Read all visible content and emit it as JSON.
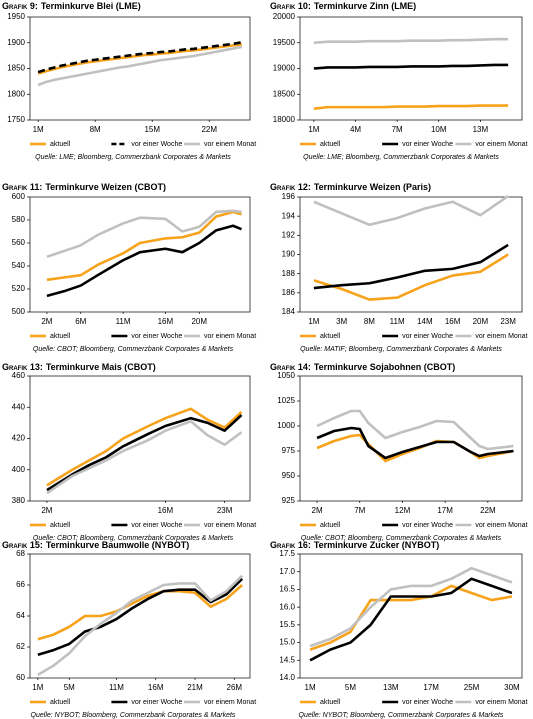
{
  "chart_data": [
    {
      "type": "line",
      "label": "Grafik 9:",
      "title": "Terminkurve Blei (LME)",
      "source": "Quelle: LME; Bloomberg, Commerzbank Corporates & Markets",
      "x": [
        1,
        2,
        3,
        4,
        5,
        6,
        7,
        8,
        9,
        10,
        11,
        12,
        13,
        14,
        15,
        16,
        17,
        18,
        19,
        20,
        21,
        22,
        23,
        24,
        25,
        26
      ],
      "xlim": [
        0,
        27
      ],
      "xticks": [
        {
          "value": 1,
          "label": "1M"
        },
        {
          "value": 8,
          "label": "8M"
        },
        {
          "value": 15,
          "label": "15M"
        },
        {
          "value": 22,
          "label": "22M"
        }
      ],
      "ylim": [
        1750,
        1950
      ],
      "yticks": [
        1750,
        1800,
        1850,
        1900,
        1950
      ],
      "series": [
        {
          "name": "aktuell",
          "color": "#f7a21b",
          "values": [
            1840,
            1845,
            1849,
            1853,
            1856,
            1859,
            1862,
            1864,
            1866,
            1868,
            1870,
            1872,
            1874,
            1876,
            1877,
            1879,
            1880,
            1882,
            1884,
            1885,
            1887,
            1889,
            1891,
            1893,
            1895,
            1897
          ]
        },
        {
          "name": "vor einer Woche",
          "color": "#000000",
          "dashed": true,
          "values": [
            1843,
            1848,
            1852,
            1856,
            1859,
            1862,
            1865,
            1867,
            1869,
            1871,
            1873,
            1875,
            1877,
            1879,
            1880,
            1882,
            1883,
            1885,
            1887,
            1888,
            1890,
            1892,
            1894,
            1896,
            1898,
            1901
          ]
        },
        {
          "name": "vor einem Monat",
          "color": "#c0c0c0",
          "values": [
            1818,
            1824,
            1828,
            1831,
            1834,
            1837,
            1840,
            1843,
            1846,
            1849,
            1852,
            1854,
            1857,
            1860,
            1863,
            1866,
            1868,
            1870,
            1872,
            1874,
            1877,
            1880,
            1883,
            1886,
            1889,
            1892
          ]
        }
      ]
    },
    {
      "type": "line",
      "label": "Grafik 10:",
      "title": "Terminkurve Zinn (LME)",
      "source": "Quelle: LME; Bloomberg, Commerzbank Corporates & Markets",
      "x": [
        1,
        2,
        3,
        4,
        5,
        6,
        7,
        8,
        9,
        10,
        11,
        12,
        13,
        14,
        15
      ],
      "xlim": [
        0,
        16
      ],
      "xticks": [
        {
          "value": 1,
          "label": "1M"
        },
        {
          "value": 4,
          "label": "4M"
        },
        {
          "value": 7,
          "label": "7M"
        },
        {
          "value": 10,
          "label": "10M"
        },
        {
          "value": 13,
          "label": "13M"
        }
      ],
      "ylim": [
        18000,
        20000
      ],
      "yticks": [
        18000,
        18500,
        19000,
        19500,
        20000
      ],
      "series": [
        {
          "name": "aktuell",
          "color": "#f7a21b",
          "values": [
            18220,
            18250,
            18250,
            18250,
            18250,
            18250,
            18260,
            18260,
            18260,
            18270,
            18270,
            18270,
            18280,
            18280,
            18280
          ]
        },
        {
          "name": "vor einer Woche",
          "color": "#000000",
          "values": [
            19000,
            19020,
            19020,
            19020,
            19030,
            19030,
            19030,
            19040,
            19040,
            19040,
            19050,
            19050,
            19060,
            19070,
            19070
          ]
        },
        {
          "name": "vor einem Monat",
          "color": "#c0c0c0",
          "values": [
            19500,
            19520,
            19520,
            19520,
            19530,
            19530,
            19530,
            19540,
            19540,
            19540,
            19550,
            19550,
            19560,
            19570,
            19570
          ]
        }
      ]
    },
    {
      "type": "line",
      "label": "Grafik 11:",
      "title": "Terminkurve Weizen (CBOT)",
      "source": "Quelle: CBOT; Bloomberg, Commerzbank Corporates & Markets",
      "x": [
        2,
        4,
        6,
        8,
        11,
        13,
        16,
        18,
        20,
        22,
        24,
        25
      ],
      "xlim": [
        0,
        26
      ],
      "xticks": [
        {
          "value": 2,
          "label": "2M"
        },
        {
          "value": 6,
          "label": "6M"
        },
        {
          "value": 11,
          "label": "11M"
        },
        {
          "value": 16,
          "label": "16M"
        },
        {
          "value": 20,
          "label": "20M"
        }
      ],
      "ylim": [
        500,
        600
      ],
      "yticks": [
        500,
        520,
        540,
        560,
        580,
        600
      ],
      "series": [
        {
          "name": "aktuell",
          "color": "#f7a21b",
          "values": [
            528,
            530,
            532,
            541,
            551,
            560,
            564,
            565,
            569,
            583,
            587,
            585
          ]
        },
        {
          "name": "vor einer Woche",
          "color": "#000000",
          "values": [
            514,
            518,
            523,
            532,
            545,
            552,
            555,
            552,
            560,
            571,
            575,
            572
          ]
        },
        {
          "name": "vor einem Monat",
          "color": "#c0c0c0",
          "values": [
            548,
            553,
            558,
            567,
            577,
            582,
            581,
            570,
            574,
            587,
            588,
            587
          ]
        }
      ]
    },
    {
      "type": "line",
      "label": "Grafik 12:",
      "title": "Terminkurve Weizen (Paris)",
      "source": "Quelle: MATIF; Bloomberg, Commerzbank Corporates & Markets",
      "categories": [
        "1M",
        "3M",
        "8M",
        "11M",
        "14M",
        "16M",
        "20M",
        "23M"
      ],
      "ylim": [
        184,
        196
      ],
      "yticks": [
        184,
        186,
        188,
        190,
        192,
        194,
        196
      ],
      "series": [
        {
          "name": "aktuell",
          "color": "#f7a21b",
          "values": [
            187.3,
            186.4,
            185.3,
            185.5,
            186.8,
            187.8,
            188.2,
            190.0
          ]
        },
        {
          "name": "vor einer Woche",
          "color": "#000000",
          "values": [
            186.5,
            186.8,
            187.0,
            187.6,
            188.3,
            188.5,
            189.2,
            191.0
          ]
        },
        {
          "name": "vor einem Monat",
          "color": "#c0c0c0",
          "values": [
            195.5,
            194.3,
            193.1,
            193.8,
            194.8,
            195.5,
            194.1,
            196.1
          ]
        }
      ]
    },
    {
      "type": "line",
      "label": "Grafik 13:",
      "title": "Terminkurve Mais (CBOT)",
      "source": "Quelle: CBOT; Bloomberg, Commerzbank Corporates & Markets",
      "x": [
        2,
        5,
        7,
        9,
        11,
        14,
        16,
        19,
        21,
        23,
        25
      ],
      "xlim": [
        0,
        26
      ],
      "xticks": [
        {
          "value": 2,
          "label": "2M"
        },
        {
          "value": 16,
          "label": "16M"
        },
        {
          "value": 23,
          "label": "23M"
        }
      ],
      "ylim": [
        380,
        460
      ],
      "yticks": [
        380,
        400,
        420,
        440,
        460
      ],
      "series": [
        {
          "name": "aktuell",
          "color": "#f7a21b",
          "values": [
            390,
            400,
            406,
            412,
            420,
            428,
            433,
            439,
            432,
            427,
            437
          ]
        },
        {
          "name": "vor einer Woche",
          "color": "#000000",
          "values": [
            387,
            397,
            403,
            408,
            415,
            423,
            428,
            433,
            430,
            425,
            435
          ]
        },
        {
          "name": "vor einem Monat",
          "color": "#c0c0c0",
          "values": [
            385,
            396,
            401,
            406,
            412,
            419,
            425,
            431,
            422,
            416,
            424
          ]
        }
      ]
    },
    {
      "type": "line",
      "label": "Grafik 14:",
      "title": "Terminkurve Sojabohnen (CBOT)",
      "source": "Quelle: CBOT; Bloomberg, Commerzbank Corporates & Markets",
      "x": [
        2,
        4,
        6,
        7,
        8,
        10,
        12,
        14,
        16,
        18,
        20,
        21,
        22,
        25
      ],
      "xlim": [
        0,
        26
      ],
      "xticks": [
        {
          "value": 2,
          "label": "2M"
        },
        {
          "value": 7,
          "label": "7M"
        },
        {
          "value": 12,
          "label": "12M"
        },
        {
          "value": 17,
          "label": "17M"
        },
        {
          "value": 22,
          "label": "22M"
        }
      ],
      "ylim": [
        925,
        1050
      ],
      "yticks": [
        925,
        950,
        975,
        1000,
        1025,
        1050
      ],
      "series": [
        {
          "name": "aktuell",
          "color": "#f7a21b",
          "values": [
            978,
            985,
            990,
            991,
            982,
            965,
            972,
            978,
            985,
            984,
            974,
            968,
            970,
            975
          ]
        },
        {
          "name": "vor einer Woche",
          "color": "#000000",
          "values": [
            988,
            995,
            998,
            997,
            980,
            968,
            974,
            979,
            984,
            984,
            974,
            970,
            972,
            975
          ]
        },
        {
          "name": "vor einem Monat",
          "color": "#c0c0c0",
          "values": [
            1000,
            1008,
            1015,
            1015,
            1003,
            988,
            994,
            999,
            1005,
            1004,
            988,
            980,
            977,
            980
          ]
        }
      ]
    },
    {
      "type": "line",
      "label": "Grafik 15:",
      "title": "Terminkurve Baumwolle (NYBOT)",
      "source": "Quelle: NYBOT; Bloomberg, Commerzbank Corporates & Markets",
      "x": [
        1,
        3,
        5,
        7,
        9,
        11,
        13,
        15,
        17,
        19,
        21,
        23,
        25,
        27
      ],
      "xlim": [
        0,
        28
      ],
      "xticks": [
        {
          "value": 1,
          "label": "1M"
        },
        {
          "value": 5,
          "label": "5M"
        },
        {
          "value": 11,
          "label": "11M"
        },
        {
          "value": 16,
          "label": "16M"
        },
        {
          "value": 21,
          "label": "21M"
        },
        {
          "value": 26,
          "label": "26M"
        }
      ],
      "ylim": [
        60,
        68
      ],
      "yticks": [
        60,
        62,
        64,
        66,
        68
      ],
      "series": [
        {
          "name": "aktuell",
          "color": "#f7a21b",
          "values": [
            62.5,
            62.8,
            63.3,
            64.0,
            64.0,
            64.3,
            64.8,
            65.3,
            65.6,
            65.6,
            65.5,
            64.6,
            65.1,
            66.0
          ]
        },
        {
          "name": "vor einer Woche",
          "color": "#000000",
          "values": [
            61.5,
            61.8,
            62.2,
            63.0,
            63.3,
            63.8,
            64.5,
            65.1,
            65.6,
            65.7,
            65.7,
            64.9,
            65.4,
            66.4
          ]
        },
        {
          "name": "vor einem Monat",
          "color": "#c0c0c0",
          "values": [
            60.2,
            60.8,
            61.6,
            62.7,
            63.5,
            64.2,
            65.0,
            65.5,
            66.0,
            66.1,
            66.1,
            65.0,
            65.6,
            66.6
          ]
        }
      ]
    },
    {
      "type": "line",
      "label": "Grafik 16:",
      "title": "Terminkurve Zucker (NYBOT)",
      "source": "Quelle: NYBOT; Bloomberg, Commerzbank Corporates & Markets",
      "categories": [
        "1M",
        null,
        "5M",
        null,
        "13M",
        null,
        "17M",
        null,
        "25M",
        null,
        "30M"
      ],
      "ylim": [
        14,
        17.5
      ],
      "yticks": [
        {
          "value": 14,
          "label": "14.0"
        },
        14.5,
        {
          "value": 15,
          "label": "15.0"
        },
        15.5,
        {
          "value": 16,
          "label": "16.0"
        },
        16.5,
        {
          "value": 17,
          "label": "17.0"
        },
        17.5
      ],
      "series": [
        {
          "name": "aktuell",
          "color": "#f7a21b",
          "values": [
            14.8,
            15.0,
            15.3,
            16.2,
            16.2,
            16.2,
            16.3,
            16.6,
            16.4,
            16.2,
            16.3
          ]
        },
        {
          "name": "vor einer Woche",
          "color": "#000000",
          "values": [
            14.5,
            14.8,
            15.0,
            15.5,
            16.3,
            16.3,
            16.3,
            16.4,
            16.8,
            16.6,
            16.4
          ]
        },
        {
          "name": "vor einem Monat",
          "color": "#c0c0c0",
          "values": [
            14.9,
            15.1,
            15.4,
            16.0,
            16.5,
            16.6,
            16.6,
            16.8,
            17.1,
            16.9,
            16.7
          ]
        }
      ]
    }
  ]
}
